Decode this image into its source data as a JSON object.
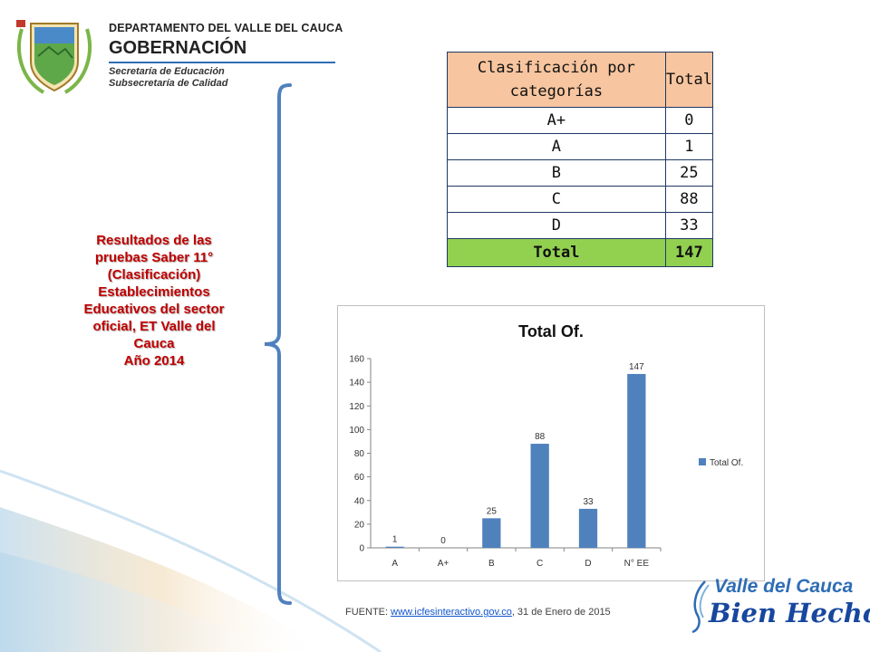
{
  "header": {
    "department": "DEPARTAMENTO DEL VALLE DEL CAUCA",
    "gobernacion": "GOBERNACIÓN",
    "secretaria": "Secretaría de Educación",
    "subsecretaria": "Subsecretaría de Calidad"
  },
  "left_title": {
    "line1": "Resultados de las",
    "line2": "pruebas Saber 11°",
    "line3": "(Clasificación)",
    "line4": "Establecimientos",
    "line5": "Educativos del sector",
    "line6": "oficial,  ET Valle del",
    "line7": "Cauca",
    "line8": "Año 2014"
  },
  "table": {
    "header_col1": "Clasificación por categorías",
    "header_col2": "Total",
    "rows": [
      {
        "cat": "A+",
        "total": "0"
      },
      {
        "cat": "A",
        "total": "1"
      },
      {
        "cat": "B",
        "total": "25"
      },
      {
        "cat": "C",
        "total": "88"
      },
      {
        "cat": "D",
        "total": "33"
      }
    ],
    "total_label": "Total",
    "total_value": "147"
  },
  "chart_data": {
    "type": "bar",
    "title": "Total Of.",
    "categories": [
      "A",
      "A+",
      "B",
      "C",
      "D",
      "N° EE"
    ],
    "series": [
      {
        "name": "Total Of.",
        "values": [
          1,
          0,
          25,
          88,
          33,
          147
        ],
        "color": "#4f81bd"
      }
    ],
    "ylim": [
      0,
      160
    ],
    "yticks": [
      0,
      20,
      40,
      60,
      80,
      100,
      120,
      140,
      160
    ],
    "grid": false,
    "legend": "right",
    "data_labels": true
  },
  "source": {
    "prefix": "FUENTE: ",
    "link": "www.icfesinteractivo.gov.co",
    "suffix": ",  31 de Enero de 2015"
  },
  "logo": {
    "line1": "Valle del Cauca",
    "line2": "Bien Hecho!"
  },
  "colors": {
    "accent": "#2e6db5",
    "title_red": "#c00000",
    "header_peach": "#f7c59f",
    "total_green": "#92d050",
    "bar_blue": "#4f81bd"
  }
}
